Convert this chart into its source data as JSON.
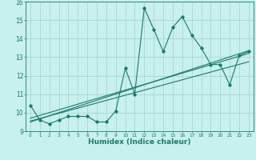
{
  "title": "",
  "xlabel": "Humidex (Indice chaleur)",
  "ylabel": "",
  "bg_color": "#c8f0ec",
  "line_color": "#1a7a6e",
  "grid_color": "#a8d8d4",
  "xlim": [
    -0.5,
    23.5
  ],
  "ylim": [
    9,
    16
  ],
  "yticks": [
    9,
    10,
    11,
    12,
    13,
    14,
    15,
    16
  ],
  "xticks": [
    0,
    1,
    2,
    3,
    4,
    5,
    6,
    7,
    8,
    9,
    10,
    11,
    12,
    13,
    14,
    15,
    16,
    17,
    18,
    19,
    20,
    21,
    22,
    23
  ],
  "series1_x": [
    0,
    1,
    2,
    3,
    4,
    5,
    6,
    7,
    8,
    9,
    10,
    11,
    12,
    13,
    14,
    15,
    16,
    17,
    18,
    19,
    20,
    21,
    22,
    23
  ],
  "series1_y": [
    10.4,
    9.6,
    9.4,
    9.6,
    9.8,
    9.8,
    9.8,
    9.5,
    9.5,
    10.1,
    12.4,
    11.0,
    15.65,
    14.5,
    13.3,
    14.6,
    15.2,
    14.2,
    13.5,
    12.6,
    12.6,
    11.5,
    13.1,
    13.3
  ],
  "series2_x": [
    0,
    23
  ],
  "series2_y": [
    9.7,
    13.2
  ],
  "series3_x": [
    0,
    23
  ],
  "series3_y": [
    9.5,
    13.35
  ],
  "series4_x": [
    0,
    23
  ],
  "series4_y": [
    9.55,
    12.75
  ]
}
